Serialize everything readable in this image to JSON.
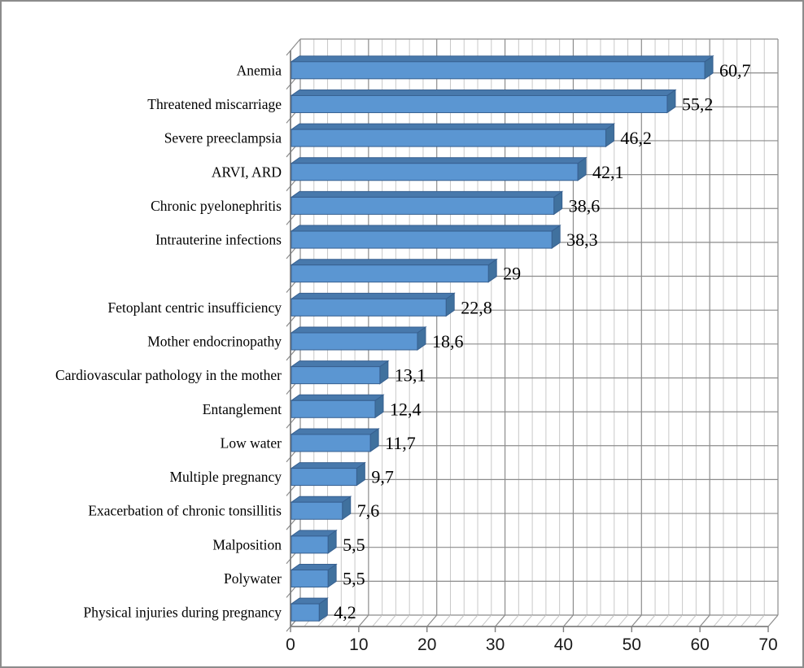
{
  "window": {
    "background_color": "#FFFFFF",
    "border_color": "#8C8C8C"
  },
  "chart_data": {
    "type": "bar",
    "orientation": "horizontal",
    "style": "excel-3d-box",
    "title": "",
    "xlabel": "",
    "ylabel": "",
    "legend_position": "none",
    "grid": {
      "vertical_major": true,
      "vertical_minor": true,
      "horizontal_category_lines": true
    },
    "xlim": [
      0,
      70
    ],
    "x_major_unit": 10,
    "x_minor_unit": 2,
    "x_tick_labels": [
      "0",
      "10",
      "20",
      "30",
      "40",
      "50",
      "60",
      "70"
    ],
    "categories": [
      "Anemia",
      "Threatened miscarriage",
      "Severe preeclampsia",
      "ARVI, ARD",
      "Chronic pyelonephritis",
      "Intrauterine infections",
      "",
      "Fetoplant centric insufficiency",
      "Mother endocrinopathy",
      "Cardiovascular pathology in the mother",
      "Entanglement",
      "Low water",
      "Multiple pregnancy",
      "Exacerbation of chronic tonsillitis",
      "Malposition",
      "Polywater",
      "Physical injuries during pregnancy"
    ],
    "values": [
      60.7,
      55.2,
      46.2,
      42.1,
      38.6,
      38.3,
      29,
      22.8,
      18.6,
      13.1,
      12.4,
      11.7,
      9.7,
      7.6,
      5.5,
      5.5,
      4.2
    ],
    "value_labels": [
      "60,7",
      "55,2",
      "46,2",
      "42,1",
      "38,6",
      "38,3",
      "29",
      "22,8",
      "18,6",
      "13,1",
      "12,4",
      "11,7",
      "9,7",
      "7,6",
      "5,5",
      "5,5",
      "4,2"
    ],
    "colors": {
      "bar_front": "#5B96D2",
      "bar_top": "#4879AC",
      "bar_side": "#40719E",
      "bar_outline": "#376090",
      "major_grid": "#8C8C8C",
      "minor_grid": "#C8C8C8",
      "axis_line": "#7F7F7F",
      "label_text": "#000000",
      "tick_text": "#1A1A1A"
    }
  }
}
